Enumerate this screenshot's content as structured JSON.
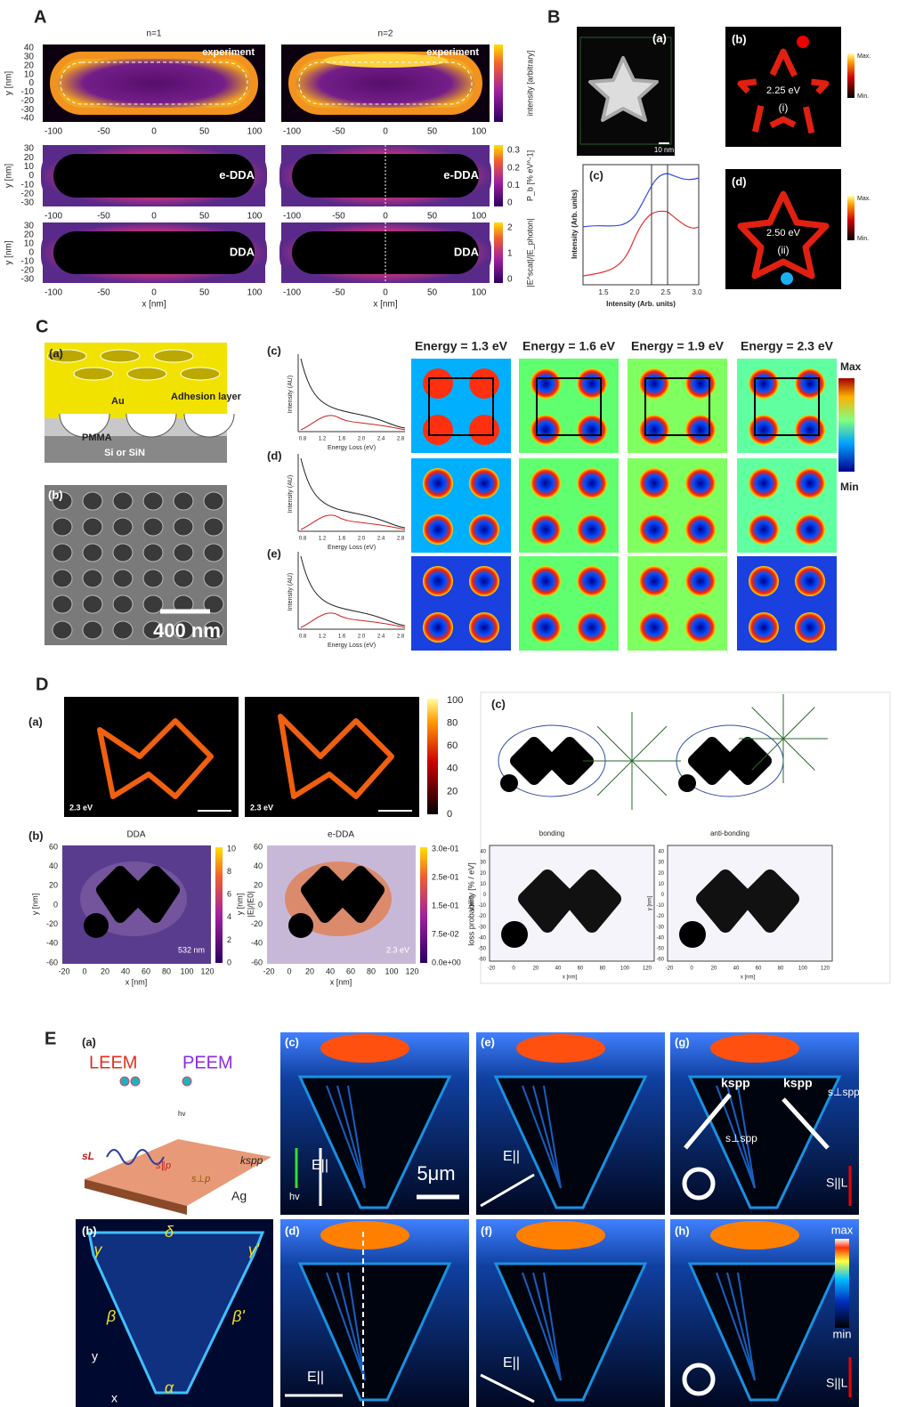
{
  "A": {
    "label": "A",
    "columns": [
      "n=1",
      "n=2"
    ],
    "ylabel": "y [nm]",
    "xlabel": "x [nm]",
    "xticks": [
      -100,
      -50,
      0,
      50,
      100
    ],
    "rows": [
      {
        "tag": "experiment",
        "yticks": [
          40,
          30,
          20,
          10,
          0,
          -10,
          -20,
          -30,
          -40
        ],
        "colorbar_label": "intensity [arbitrary]"
      },
      {
        "tag": "e-DDA",
        "yticks": [
          30,
          20,
          10,
          0,
          -10,
          -20,
          -30
        ],
        "colorbar_label": "P_b [% eV^-1]",
        "colorbar_ticks": [
          0.3,
          0.2,
          0.1,
          0
        ]
      },
      {
        "tag": "DDA",
        "yticks": [
          30,
          20,
          10,
          0,
          -10,
          -20,
          -30
        ],
        "colorbar_label": "|E^scat|/|E_photon|",
        "colorbar_ticks": [
          2,
          1,
          0
        ]
      }
    ]
  },
  "B": {
    "label": "B",
    "a": {
      "label": "(a)",
      "scale": "10 nm"
    },
    "b": {
      "label": "(b)",
      "energy": "2.25 eV",
      "mode": "(i)",
      "max": "Max.",
      "min": "Min."
    },
    "c": {
      "label": "(c)",
      "ylabel": "Intensity (Arb. units)",
      "xlabel": "Intensity (Arb. units)",
      "xticks": [
        "1.5",
        "2.0",
        "2.5",
        "3.0"
      ]
    },
    "d": {
      "label": "(d)",
      "energy": "2.50 eV",
      "mode": "(ii)",
      "max": "Max.",
      "min": "Min."
    }
  },
  "C": {
    "label": "C",
    "a": {
      "label": "(a)",
      "au": "Au",
      "adhesion": "Adhesion layer",
      "pmma": "PMMA",
      "substrate": "Si or SiN"
    },
    "b": {
      "label": "(b)",
      "scale": "400 nm"
    },
    "energies": [
      "Energy = 1.3 eV",
      "Energy = 1.6 eV",
      "Energy = 1.9 eV",
      "Energy = 2.3 eV"
    ],
    "rows": [
      "(c)",
      "(d)",
      "(e)"
    ],
    "spectrum": {
      "ylabel": "Intensity (AU)",
      "xlabel": "Energy Loss (eV)",
      "xticks": [
        "0.8",
        "1.2",
        "1.6",
        "2.0",
        "2.4",
        "2.8"
      ]
    },
    "colorbar": {
      "max": "Max",
      "min": "Min"
    }
  },
  "D": {
    "label": "D",
    "a": {
      "label": "(a)",
      "energies": [
        "2.3 eV",
        "2.3 eV"
      ],
      "colorbar_ticks": [
        100,
        80,
        60,
        40,
        20,
        0
      ]
    },
    "b": {
      "label": "(b)",
      "titles": [
        "DDA",
        "e-DDA"
      ],
      "ylabel": "y [nm]",
      "xlabel": "x [nm]",
      "yticks": [
        60,
        40,
        20,
        0,
        -20,
        -40,
        -60
      ],
      "xticks": [
        -20,
        0,
        20,
        40,
        60,
        80,
        100,
        120
      ],
      "left_colorbar": {
        "ticks": [
          10,
          8,
          6,
          4,
          2,
          0
        ],
        "label": "|E|/|E0|",
        "note": "532 nm"
      },
      "right_colorbar": {
        "ticks": [
          "3.0e-01",
          "2.5e-01",
          "1.5e-01",
          "7.5e-02",
          "0.0e+00"
        ],
        "label": "loss probability [% / eV]",
        "note": "2.3 eV"
      }
    },
    "c": {
      "label": "(c)",
      "modes": [
        "bonding",
        "anti-bonding"
      ],
      "yticks": [
        40,
        30,
        20,
        10,
        0,
        -10,
        -20,
        -30,
        -40,
        -50,
        -60
      ],
      "xticks": [
        -20,
        0,
        20,
        40,
        60,
        80,
        100,
        120
      ],
      "ylabel": "y [nm]",
      "xlabel": "x [nm]"
    }
  },
  "E": {
    "label": "E",
    "panels": [
      "(a)",
      "(b)",
      "(c)",
      "(d)",
      "(e)",
      "(f)",
      "(g)",
      "(h)"
    ],
    "a": {
      "leem": "LEEM",
      "peem": "PEEM",
      "metal": "Ag",
      "hv": "hv",
      "s_l": "sL",
      "s_par": "s∥p",
      "s_perp": "s⊥p",
      "k": "kspp"
    },
    "b": {
      "corners": [
        "γ",
        "δ",
        "γ'",
        "β",
        "β'",
        "α"
      ],
      "axes": [
        "y",
        "x"
      ]
    },
    "scale": "5μm",
    "field": "E||",
    "hv": "hv",
    "k": "kspp",
    "s_perp": "s⊥spp",
    "s_par": "S||L",
    "max": "max",
    "min": "min"
  }
}
